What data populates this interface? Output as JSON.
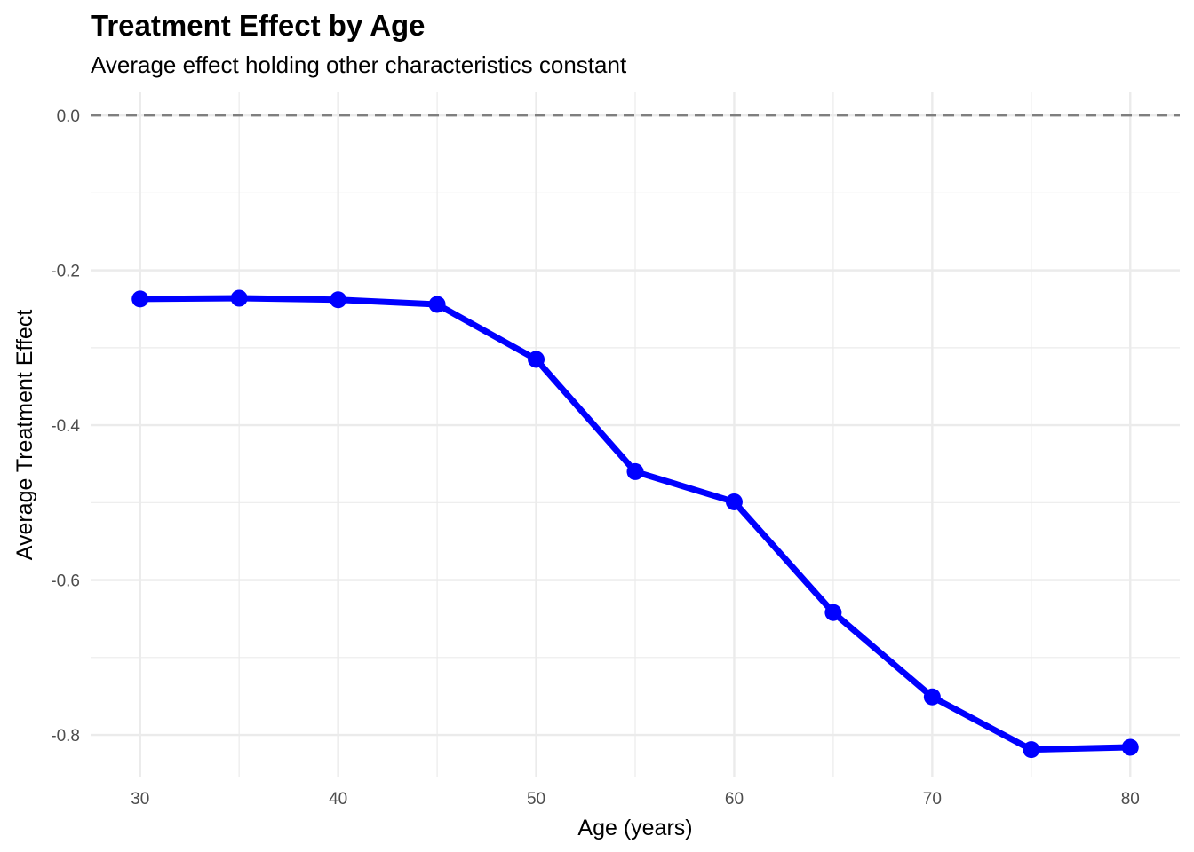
{
  "chart_data": {
    "type": "line",
    "title": "Treatment Effect by Age",
    "subtitle": "Average effect holding other characteristics constant",
    "xlabel": "Age (years)",
    "ylabel": "Average Treatment Effect",
    "x": [
      30,
      35,
      40,
      45,
      50,
      55,
      60,
      65,
      70,
      75,
      80
    ],
    "series": [
      {
        "values": [
          -0.237,
          -0.236,
          -0.238,
          -0.244,
          -0.315,
          -0.46,
          -0.499,
          -0.642,
          -0.751,
          -0.819,
          -0.816
        ]
      }
    ],
    "xlim": [
      27.5,
      82.5
    ],
    "ylim": [
      -0.855,
      0.03
    ],
    "x_ticks": [
      30,
      40,
      50,
      60,
      70,
      80
    ],
    "x_tick_labels": [
      "30",
      "40",
      "50",
      "60",
      "70",
      "80"
    ],
    "y_ticks": [
      0.0,
      -0.2,
      -0.4,
      -0.6,
      -0.8
    ],
    "y_tick_labels": [
      "0.0",
      "-0.2",
      "-0.4",
      "-0.6",
      "-0.8"
    ],
    "reference_line": {
      "y": 0.0,
      "style": "dashed"
    },
    "grid": true,
    "legend": "none",
    "colors": {
      "series": "#0000ff",
      "reference_line": "#7f7f7f",
      "grid": "#ebebeb"
    }
  }
}
